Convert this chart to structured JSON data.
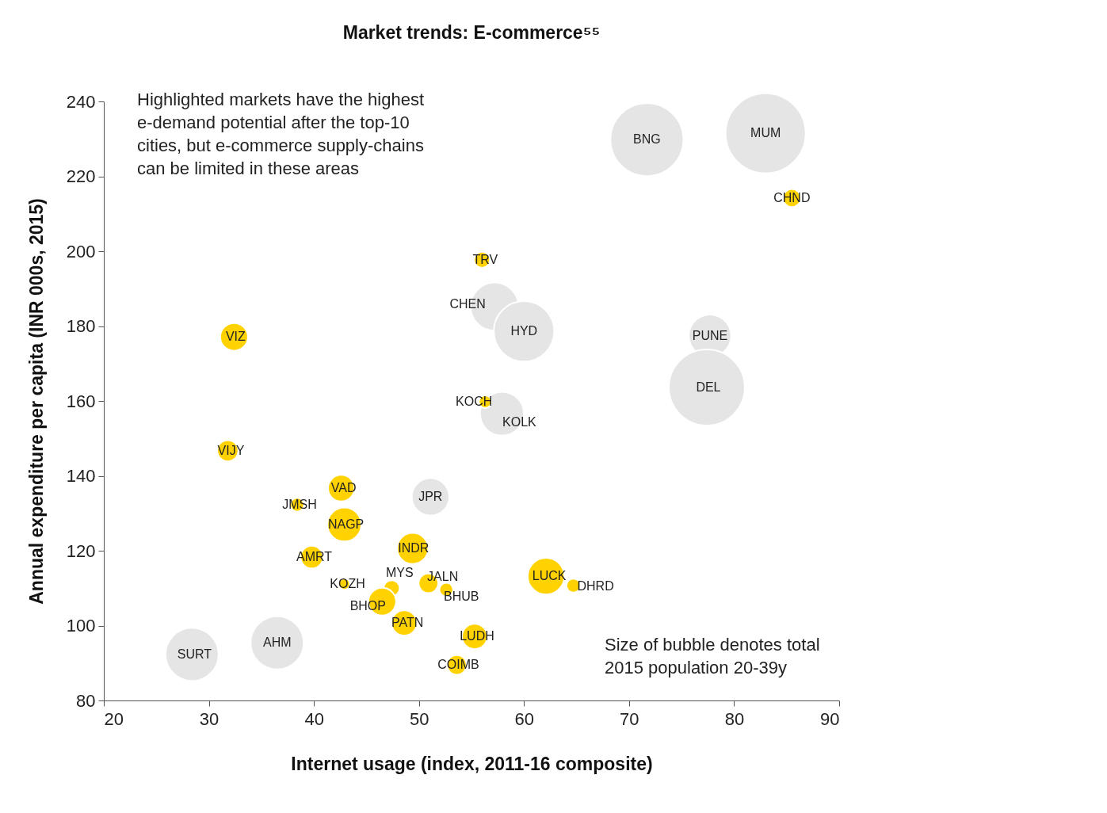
{
  "chart_data": {
    "type": "bubble",
    "title": "Market trends: E-commerce⁵⁵",
    "xlabel": "Internet usage (index, 2011-16 composite)",
    "ylabel": "Annual expenditure per capita (INR 000s, 2015)",
    "xlim": [
      20,
      90
    ],
    "xticks": [
      20,
      30,
      40,
      50,
      60,
      70,
      80,
      90
    ],
    "ylim": [
      80,
      240
    ],
    "yticks": [
      80,
      100,
      120,
      140,
      160,
      180,
      200,
      220,
      240
    ],
    "grid": false,
    "series": [
      {
        "color": "#e5e5e6",
        "x": [
          71.7,
          83.0,
          57.2,
          60.0,
          77.7,
          77.4,
          57.9,
          51.1,
          28.4,
          36.5
        ],
        "values": [
          229.8,
          231.5,
          185.2,
          178.6,
          177.4,
          163.6,
          156.6,
          134.4,
          92.3,
          95.4
        ],
        "sizes": [
          0.83,
          1,
          0.36,
          0.57,
          0.28,
          0.9,
          0.3,
          0.22,
          0.44,
          0.44
        ]
      },
      {
        "color": "#ffd200",
        "x": [
          85.5,
          56.0,
          32.4,
          56.3,
          31.8,
          42.6,
          38.4,
          42.9,
          49.4,
          39.8,
          42.9,
          47.4,
          50.9,
          52.6,
          46.5,
          62.1,
          64.7,
          48.6,
          55.3,
          53.6
        ],
        "values": [
          214.2,
          197.7,
          177.1,
          159.8,
          146.7,
          136.7,
          132.3,
          127.0,
          120.6,
          118.3,
          111.1,
          110.0,
          111.3,
          109.6,
          106.4,
          113.2,
          110.7,
          100.7,
          97.1,
          89.5
        ],
        "sizes": [
          0.05,
          0.04,
          0.12,
          0.025,
          0.07,
          0.11,
          0.03,
          0.18,
          0.15,
          0.08,
          0.02,
          0.04,
          0.06,
          0.03,
          0.12,
          0.21,
          0.03,
          0.1,
          0.1,
          0.06
        ]
      }
    ],
    "annotations": [
      "Highlighted markets have the highest\ne-demand potential after the top-10\ncities, but e-commerce supply-chains\ncan be limited in these areas",
      "Size of bubble denotes total\n2015 population 20-39y",
      {
        "text": "BNG",
        "x": 71.7,
        "y": 229.8
      },
      {
        "text": "MUM",
        "x": 83.0,
        "y": 231.5
      },
      {
        "text": "CHND",
        "x": 85.5,
        "y": 214.2
      },
      {
        "text": "TRV",
        "x": 56.0,
        "y": 197.7
      },
      {
        "text": "CHEN",
        "x": 57.2,
        "y": 185.2
      },
      {
        "text": "HYD",
        "x": 60.0,
        "y": 178.6
      },
      {
        "text": "PUNE",
        "x": 77.7,
        "y": 177.4
      },
      {
        "text": "DEL",
        "x": 77.4,
        "y": 163.6
      },
      {
        "text": "VIZ",
        "x": 32.4,
        "y": 177.1
      },
      {
        "text": "KOCH",
        "x": 56.3,
        "y": 159.8
      },
      {
        "text": "KOLK",
        "x": 57.9,
        "y": 156.6
      },
      {
        "text": "VIJY",
        "x": 31.8,
        "y": 146.7
      },
      {
        "text": "VAD",
        "x": 42.6,
        "y": 136.7
      },
      {
        "text": "JMSH",
        "x": 38.4,
        "y": 132.3
      },
      {
        "text": "JPR",
        "x": 51.1,
        "y": 134.4
      },
      {
        "text": "NAGP",
        "x": 42.9,
        "y": 127.0
      },
      {
        "text": "INDR",
        "x": 49.4,
        "y": 120.6
      },
      {
        "text": "AMRT",
        "x": 39.8,
        "y": 118.3
      },
      {
        "text": "KOZH",
        "x": 42.9,
        "y": 111.1
      },
      {
        "text": "MYS",
        "x": 47.4,
        "y": 110.0
      },
      {
        "text": "JALN",
        "x": 50.9,
        "y": 111.3
      },
      {
        "text": "BHUB",
        "x": 52.6,
        "y": 109.6
      },
      {
        "text": "BHOP",
        "x": 46.5,
        "y": 106.4
      },
      {
        "text": "LUCK",
        "x": 62.1,
        "y": 113.2
      },
      {
        "text": "DHRD",
        "x": 64.7,
        "y": 110.7
      },
      {
        "text": "PATN",
        "x": 48.6,
        "y": 100.7
      },
      {
        "text": "LUDH",
        "x": 55.3,
        "y": 97.1
      },
      {
        "text": "COIMB",
        "x": 53.6,
        "y": 89.5
      },
      {
        "text": "SURT",
        "x": 28.4,
        "y": 92.3
      },
      {
        "text": "AHM",
        "x": 36.5,
        "y": 95.4
      }
    ]
  }
}
